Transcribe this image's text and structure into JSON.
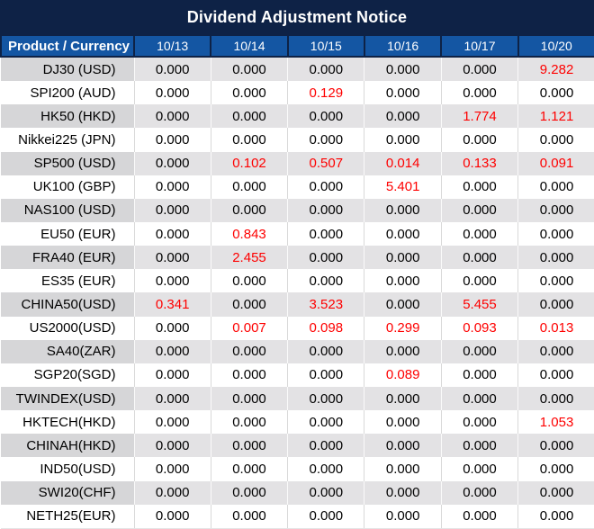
{
  "title": "Dividend Adjustment Notice",
  "table": {
    "product_header": "Product / Currency",
    "date_headers": [
      "10/13",
      "10/14",
      "10/15",
      "10/16",
      "10/17",
      "10/20"
    ],
    "rows": [
      {
        "product": "DJ30 (USD)",
        "values": [
          "0.000",
          "0.000",
          "0.000",
          "0.000",
          "0.000",
          "9.282"
        ],
        "red": [
          false,
          false,
          false,
          false,
          false,
          true
        ]
      },
      {
        "product": "SPI200 (AUD)",
        "values": [
          "0.000",
          "0.000",
          "0.129",
          "0.000",
          "0.000",
          "0.000"
        ],
        "red": [
          false,
          false,
          true,
          false,
          false,
          false
        ]
      },
      {
        "product": "HK50 (HKD)",
        "values": [
          "0.000",
          "0.000",
          "0.000",
          "0.000",
          "1.774",
          "1.121"
        ],
        "red": [
          false,
          false,
          false,
          false,
          true,
          true
        ]
      },
      {
        "product": "Nikkei225 (JPN)",
        "values": [
          "0.000",
          "0.000",
          "0.000",
          "0.000",
          "0.000",
          "0.000"
        ],
        "red": [
          false,
          false,
          false,
          false,
          false,
          false
        ]
      },
      {
        "product": "SP500 (USD)",
        "values": [
          "0.000",
          "0.102",
          "0.507",
          "0.014",
          "0.133",
          "0.091"
        ],
        "red": [
          false,
          true,
          true,
          true,
          true,
          true
        ]
      },
      {
        "product": "UK100 (GBP)",
        "values": [
          "0.000",
          "0.000",
          "0.000",
          "5.401",
          "0.000",
          "0.000"
        ],
        "red": [
          false,
          false,
          false,
          true,
          false,
          false
        ]
      },
      {
        "product": "NAS100 (USD)",
        "values": [
          "0.000",
          "0.000",
          "0.000",
          "0.000",
          "0.000",
          "0.000"
        ],
        "red": [
          false,
          false,
          false,
          false,
          false,
          false
        ]
      },
      {
        "product": "EU50 (EUR)",
        "values": [
          "0.000",
          "0.843",
          "0.000",
          "0.000",
          "0.000",
          "0.000"
        ],
        "red": [
          false,
          true,
          false,
          false,
          false,
          false
        ]
      },
      {
        "product": "FRA40 (EUR)",
        "values": [
          "0.000",
          "2.455",
          "0.000",
          "0.000",
          "0.000",
          "0.000"
        ],
        "red": [
          false,
          true,
          false,
          false,
          false,
          false
        ]
      },
      {
        "product": "ES35 (EUR)",
        "values": [
          "0.000",
          "0.000",
          "0.000",
          "0.000",
          "0.000",
          "0.000"
        ],
        "red": [
          false,
          false,
          false,
          false,
          false,
          false
        ]
      },
      {
        "product": "CHINA50(USD)",
        "values": [
          "0.341",
          "0.000",
          "3.523",
          "0.000",
          "5.455",
          "0.000"
        ],
        "red": [
          true,
          false,
          true,
          false,
          true,
          false
        ]
      },
      {
        "product": "US2000(USD)",
        "values": [
          "0.000",
          "0.007",
          "0.098",
          "0.299",
          "0.093",
          "0.013"
        ],
        "red": [
          false,
          true,
          true,
          true,
          true,
          true
        ]
      },
      {
        "product": "SA40(ZAR)",
        "values": [
          "0.000",
          "0.000",
          "0.000",
          "0.000",
          "0.000",
          "0.000"
        ],
        "red": [
          false,
          false,
          false,
          false,
          false,
          false
        ]
      },
      {
        "product": "SGP20(SGD)",
        "values": [
          "0.000",
          "0.000",
          "0.000",
          "0.089",
          "0.000",
          "0.000"
        ],
        "red": [
          false,
          false,
          false,
          true,
          false,
          false
        ]
      },
      {
        "product": "TWINDEX(USD)",
        "values": [
          "0.000",
          "0.000",
          "0.000",
          "0.000",
          "0.000",
          "0.000"
        ],
        "red": [
          false,
          false,
          false,
          false,
          false,
          false
        ]
      },
      {
        "product": "HKTECH(HKD)",
        "values": [
          "0.000",
          "0.000",
          "0.000",
          "0.000",
          "0.000",
          "1.053"
        ],
        "red": [
          false,
          false,
          false,
          false,
          false,
          true
        ]
      },
      {
        "product": "CHINAH(HKD)",
        "values": [
          "0.000",
          "0.000",
          "0.000",
          "0.000",
          "0.000",
          "0.000"
        ],
        "red": [
          false,
          false,
          false,
          false,
          false,
          false
        ]
      },
      {
        "product": "IND50(USD)",
        "values": [
          "0.000",
          "0.000",
          "0.000",
          "0.000",
          "0.000",
          "0.000"
        ],
        "red": [
          false,
          false,
          false,
          false,
          false,
          false
        ]
      },
      {
        "product": "SWI20(CHF)",
        "values": [
          "0.000",
          "0.000",
          "0.000",
          "0.000",
          "0.000",
          "0.000"
        ],
        "red": [
          false,
          false,
          false,
          false,
          false,
          false
        ]
      },
      {
        "product": "NETH25(EUR)",
        "values": [
          "0.000",
          "0.000",
          "0.000",
          "0.000",
          "0.000",
          "0.000"
        ],
        "red": [
          false,
          false,
          false,
          false,
          false,
          false
        ]
      }
    ]
  },
  "colors": {
    "title_bg": "#0E2246",
    "header_bg": "#1456A3",
    "stripe_product_bg": "#D6D6D8",
    "stripe_value_bg": "#E3E2E4",
    "value_red": "#FE0000",
    "value_black": "#000000",
    "white_row_divider": "#D9D9D9"
  }
}
